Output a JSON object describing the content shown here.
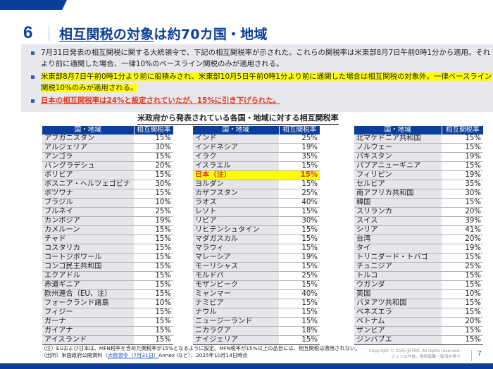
{
  "slide": {
    "number": "6",
    "title_underlined": "相互関税の対象",
    "title_rest": "は約70カ国・地域",
    "page_number": "7"
  },
  "summary": {
    "bullets": [
      "7月31日発表の相互関税に関する大統領令で、下記の相互関税率が示された。これらの関税率は米東部8月7日午前0時1分から適用。それより前に通関した場合、一律10%のベースライン関税のみが適用される。",
      "米東部8月7日午前0時1分より前に船積みされ、米東部10月5日午前0時1分より前に通関した場合は相互関税の対象外。一律ベースライン関税10%のみが適用される。",
      "日本の相互関税率は24%と設定されていたが、15%に引き下げられた。"
    ]
  },
  "table_title": "米政府から発表されている各国・地域に対する相互関税率",
  "table_headers": {
    "country": "国・地域",
    "rate": "相互関税率"
  },
  "tables": [
    {
      "rows": [
        {
          "c": "アフガニスタン",
          "r": "15%"
        },
        {
          "c": "アルジェリア",
          "r": "30%"
        },
        {
          "c": "アンゴラ",
          "r": "15%"
        },
        {
          "c": "バングラデシュ",
          "r": "20%"
        },
        {
          "c": "ボリビア",
          "r": "15%"
        },
        {
          "c": "ボスニア・ヘルツェゴビナ",
          "r": "30%"
        },
        {
          "c": "ボツワナ",
          "r": "15%"
        },
        {
          "c": "ブラジル",
          "r": "10%"
        },
        {
          "c": "ブルネイ",
          "r": "25%"
        },
        {
          "c": "カンボジア",
          "r": "19%"
        },
        {
          "c": "カメルーン",
          "r": "15%"
        },
        {
          "c": "チャド",
          "r": "15%"
        },
        {
          "c": "コスタリカ",
          "r": "15%"
        },
        {
          "c": "コートジボワール",
          "r": "15%"
        },
        {
          "c": "コンゴ民主共和国",
          "r": "15%"
        },
        {
          "c": "エクアドル",
          "r": "15%"
        },
        {
          "c": "赤道ギニア",
          "r": "15%"
        },
        {
          "c": "欧州連合（EU、注）",
          "r": "15%"
        },
        {
          "c": "フォークランド諸島",
          "r": "10%"
        },
        {
          "c": "フィジー",
          "r": "15%"
        },
        {
          "c": "ガーナ",
          "r": "15%"
        },
        {
          "c": "ガイアナ",
          "r": "15%"
        },
        {
          "c": "アイスランド",
          "r": "15%"
        }
      ]
    },
    {
      "rows": [
        {
          "c": "インド",
          "r": "25%"
        },
        {
          "c": "インドネシア",
          "r": "19%"
        },
        {
          "c": "イラク",
          "r": "35%"
        },
        {
          "c": "イスラエル",
          "r": "15%"
        },
        {
          "c": "日本（注）",
          "r": "15%",
          "highlight": true
        },
        {
          "c": "ヨルダン",
          "r": "15%"
        },
        {
          "c": "カザフスタン",
          "r": "25%"
        },
        {
          "c": "ラオス",
          "r": "40%"
        },
        {
          "c": "レソト",
          "r": "15%"
        },
        {
          "c": "リビア",
          "r": "30%"
        },
        {
          "c": "リヒテンシュタイン",
          "r": "15%"
        },
        {
          "c": "マダガスカル",
          "r": "15%"
        },
        {
          "c": "マラウィ",
          "r": "15%"
        },
        {
          "c": "マレーシア",
          "r": "19%"
        },
        {
          "c": "モーリシャス",
          "r": "15%"
        },
        {
          "c": "モルドバ",
          "r": "25%"
        },
        {
          "c": "モザンビーク",
          "r": "15%"
        },
        {
          "c": "ミャンマー",
          "r": "40%"
        },
        {
          "c": "ナミビア",
          "r": "15%"
        },
        {
          "c": "ナウル",
          "r": "15%"
        },
        {
          "c": "ニュージーランド",
          "r": "15%"
        },
        {
          "c": "ニカラグア",
          "r": "18%"
        },
        {
          "c": "ナイジェリア",
          "r": "15%"
        }
      ]
    },
    {
      "rows": [
        {
          "c": "北マケドニア共和国",
          "r": "15%"
        },
        {
          "c": "ノルウェー",
          "r": "15%"
        },
        {
          "c": "パキスタン",
          "r": "19%"
        },
        {
          "c": "パプアニューギニア",
          "r": "15%"
        },
        {
          "c": "フィリピン",
          "r": "19%"
        },
        {
          "c": "セルビア",
          "r": "35%"
        },
        {
          "c": "南アフリカ共和国",
          "r": "30%"
        },
        {
          "c": "韓国",
          "r": "15%"
        },
        {
          "c": "スリランカ",
          "r": "20%"
        },
        {
          "c": "スイス",
          "r": "39%"
        },
        {
          "c": "シリア",
          "r": "41%"
        },
        {
          "c": "台湾",
          "r": "20%"
        },
        {
          "c": "タイ",
          "r": "19%"
        },
        {
          "c": "トリニダード・トバゴ",
          "r": "15%"
        },
        {
          "c": "チュニジア",
          "r": "25%"
        },
        {
          "c": "トルコ",
          "r": "15%"
        },
        {
          "c": "ウガンダ",
          "r": "15%"
        },
        {
          "c": "英国",
          "r": "10%"
        },
        {
          "c": "バヌアツ共和国",
          "r": "15%"
        },
        {
          "c": "ベネズエラ",
          "r": "15%"
        },
        {
          "c": "ベトナム",
          "r": "20%"
        },
        {
          "c": "ザンビア",
          "r": "15%"
        },
        {
          "c": "ジンバブエ",
          "r": "15%"
        }
      ]
    }
  ],
  "footer": {
    "note": "（注）EUおよび日本は、MFN税率を含めた関税率が15%となるように設定。MFN税率が15%以上の品目には、相互関税は適用されない。",
    "source_prefix": "（出所）米国政府公開資料（",
    "source_link": "大統領令（7月31日）",
    "source_suffix": "Annex Iなど）、2025年10月14日時点",
    "copyright_line1": "Copyright © 2025 JETRO. All rights reserved.",
    "copyright_line2": "ジェトロ作成。無断転載・転用を禁ず"
  },
  "colors": {
    "brand_blue": "#0a3d9c",
    "highlight_yellow": "#ffff00",
    "alert_red": "#e03a1e",
    "summary_bg": "#e6e8ee"
  }
}
